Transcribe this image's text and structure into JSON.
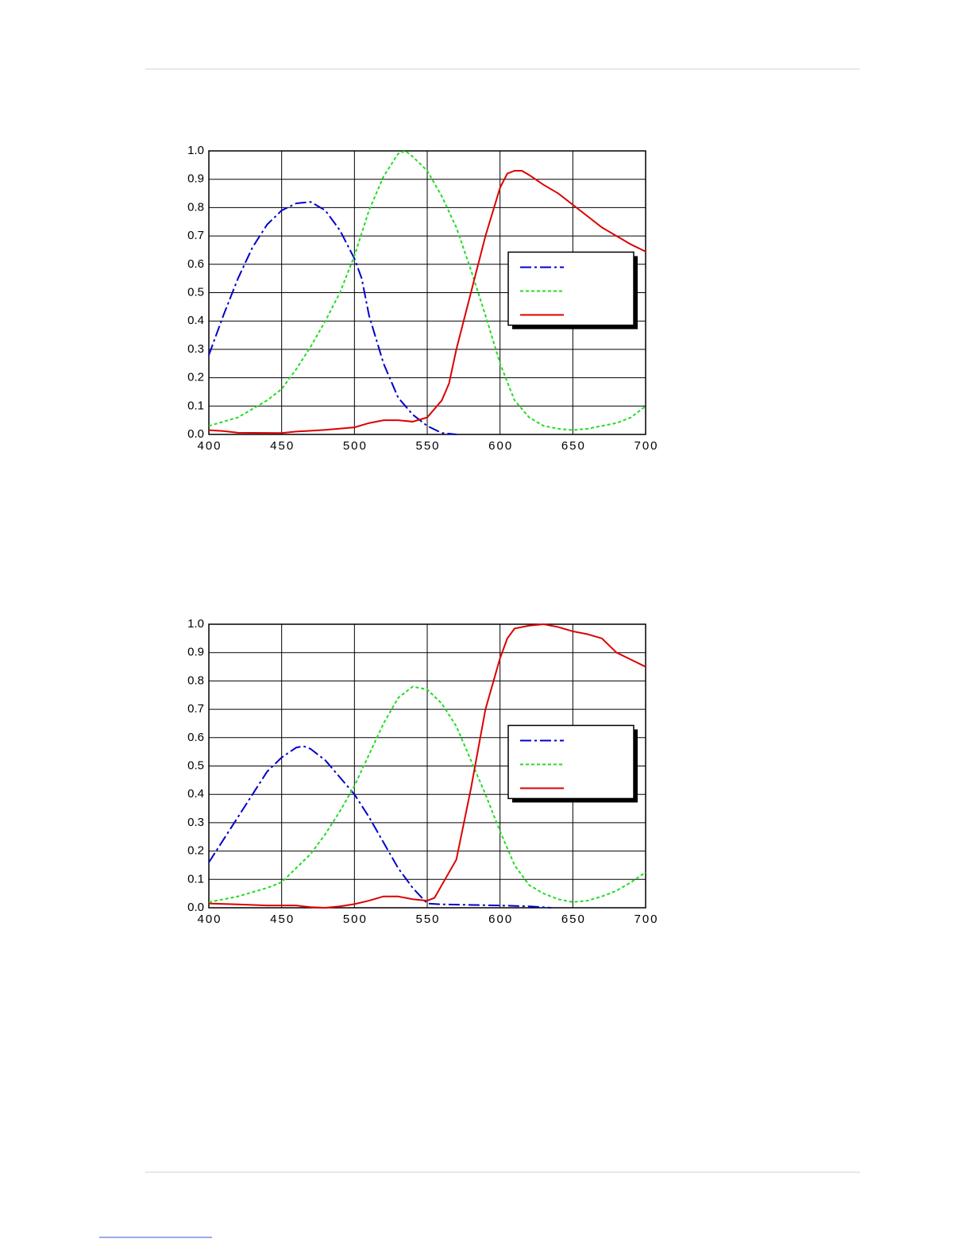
{
  "chart_data": [
    {
      "type": "line",
      "xlim": [
        400,
        700
      ],
      "xticks": [
        400,
        450,
        500,
        550,
        600,
        650,
        700
      ],
      "ylim": [
        0,
        1
      ],
      "yticks": [
        {
          "value": 0,
          "label": "0.0"
        },
        0.1,
        0.2,
        0.3,
        0.4,
        0.5,
        0.6,
        0.7,
        0.8,
        0.9,
        {
          "value": 1,
          "label": "1.0"
        }
      ],
      "grid": true,
      "legend": "right",
      "series": [
        {
          "color": "#0000cc",
          "dash": "dashdot",
          "x": [
            400,
            410,
            420,
            430,
            440,
            450,
            460,
            470,
            480,
            490,
            500,
            505,
            510,
            520,
            530,
            540,
            550,
            560,
            570
          ],
          "values": [
            0.28,
            0.42,
            0.55,
            0.66,
            0.74,
            0.79,
            0.815,
            0.82,
            0.79,
            0.72,
            0.62,
            0.55,
            0.42,
            0.25,
            0.13,
            0.07,
            0.03,
            0.005,
            0
          ]
        },
        {
          "color": "#22dd22",
          "dash": "dotted",
          "x": [
            400,
            420,
            440,
            450,
            460,
            470,
            480,
            490,
            500,
            510,
            520,
            530,
            535,
            540,
            550,
            560,
            570,
            580,
            590,
            600,
            610,
            620,
            630,
            640,
            650,
            660,
            680,
            690,
            700
          ],
          "values": [
            0.03,
            0.06,
            0.12,
            0.16,
            0.23,
            0.31,
            0.4,
            0.5,
            0.63,
            0.79,
            0.91,
            0.99,
            1.0,
            0.98,
            0.93,
            0.84,
            0.73,
            0.58,
            0.42,
            0.25,
            0.12,
            0.06,
            0.03,
            0.02,
            0.015,
            0.02,
            0.04,
            0.06,
            0.1
          ]
        },
        {
          "color": "#dd0000",
          "dash": "solid",
          "x": [
            400,
            410,
            420,
            450,
            460,
            480,
            500,
            510,
            520,
            530,
            540,
            550,
            560,
            565,
            570,
            580,
            590,
            600,
            605,
            610,
            615,
            620,
            630,
            640,
            650,
            660,
            670,
            680,
            690,
            700
          ],
          "values": [
            0.015,
            0.012,
            0.006,
            0.005,
            0.01,
            0.016,
            0.025,
            0.04,
            0.05,
            0.05,
            0.045,
            0.06,
            0.12,
            0.18,
            0.3,
            0.5,
            0.7,
            0.87,
            0.92,
            0.93,
            0.93,
            0.915,
            0.88,
            0.85,
            0.81,
            0.77,
            0.73,
            0.7,
            0.67,
            0.645
          ]
        }
      ]
    },
    {
      "type": "line",
      "xlim": [
        400,
        700
      ],
      "xticks": [
        400,
        450,
        500,
        550,
        600,
        650,
        700
      ],
      "ylim": [
        0,
        1
      ],
      "yticks": [
        {
          "value": 0,
          "label": "0.0"
        },
        0.1,
        0.2,
        0.3,
        0.4,
        0.5,
        0.6,
        0.7,
        0.8,
        0.9,
        {
          "value": 1,
          "label": "1.0"
        }
      ],
      "grid": true,
      "legend": "right",
      "series": [
        {
          "color": "#0000cc",
          "dash": "dashdot",
          "x": [
            400,
            410,
            420,
            430,
            440,
            450,
            460,
            465,
            470,
            480,
            490,
            500,
            510,
            520,
            530,
            540,
            550,
            560,
            600,
            620,
            635
          ],
          "values": [
            0.16,
            0.24,
            0.32,
            0.4,
            0.48,
            0.53,
            0.565,
            0.57,
            0.56,
            0.52,
            0.46,
            0.4,
            0.32,
            0.23,
            0.14,
            0.07,
            0.015,
            0.012,
            0.008,
            0.005,
            0
          ]
        },
        {
          "color": "#22dd22",
          "dash": "dotted",
          "x": [
            400,
            420,
            440,
            450,
            460,
            470,
            480,
            490,
            500,
            510,
            520,
            530,
            540,
            550,
            560,
            570,
            580,
            590,
            600,
            610,
            620,
            630,
            640,
            650,
            660,
            670,
            680,
            690,
            700
          ],
          "values": [
            0.02,
            0.04,
            0.07,
            0.09,
            0.14,
            0.19,
            0.26,
            0.34,
            0.43,
            0.54,
            0.65,
            0.74,
            0.78,
            0.77,
            0.72,
            0.64,
            0.52,
            0.4,
            0.27,
            0.15,
            0.08,
            0.05,
            0.03,
            0.02,
            0.025,
            0.04,
            0.06,
            0.09,
            0.125
          ]
        },
        {
          "color": "#dd0000",
          "dash": "solid",
          "x": [
            400,
            420,
            440,
            460,
            470,
            480,
            490,
            500,
            510,
            520,
            530,
            540,
            550,
            555,
            560,
            570,
            580,
            590,
            600,
            605,
            610,
            620,
            630,
            640,
            650,
            660,
            670,
            680,
            690,
            700
          ],
          "values": [
            0.015,
            0.012,
            0.008,
            0.008,
            0.002,
            0,
            0.005,
            0.013,
            0.025,
            0.04,
            0.04,
            0.03,
            0.025,
            0.035,
            0.08,
            0.17,
            0.42,
            0.7,
            0.88,
            0.95,
            0.985,
            0.995,
            1.0,
            0.99,
            0.975,
            0.965,
            0.95,
            0.9,
            0.875,
            0.85
          ]
        }
      ]
    }
  ]
}
